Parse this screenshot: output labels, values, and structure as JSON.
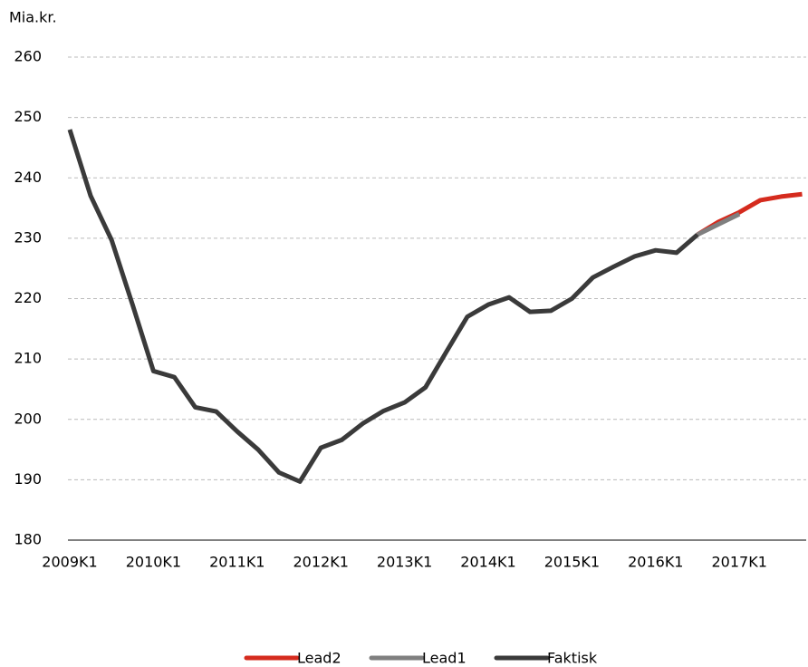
{
  "chart_data": {
    "type": "line",
    "y_label": "Mia.kr.",
    "categories": [
      "2009K1",
      null,
      null,
      null,
      "2010K1",
      null,
      null,
      null,
      "2011K1",
      null,
      null,
      null,
      "2012K1",
      null,
      null,
      null,
      "2013K1",
      null,
      null,
      null,
      "2014K1",
      null,
      null,
      null,
      "2015K1",
      null,
      null,
      null,
      "2016K1",
      null,
      null,
      null,
      "2017K1",
      null,
      null,
      null
    ],
    "series": [
      {
        "name": "Lead2",
        "color": "#d52b1e",
        "values": [
          null,
          null,
          null,
          null,
          null,
          null,
          null,
          null,
          null,
          null,
          null,
          null,
          null,
          null,
          null,
          null,
          null,
          null,
          null,
          null,
          null,
          null,
          null,
          null,
          null,
          null,
          null,
          null,
          null,
          null,
          230.6,
          232.7,
          234.3,
          236.3,
          236.9,
          237.3
        ]
      },
      {
        "name": "Lead1",
        "color": "#7f7f7f",
        "values": [
          null,
          null,
          null,
          null,
          null,
          null,
          null,
          null,
          null,
          null,
          null,
          null,
          null,
          null,
          null,
          null,
          null,
          null,
          null,
          null,
          null,
          null,
          null,
          null,
          null,
          null,
          null,
          null,
          null,
          null,
          230.6,
          232.3,
          234.0,
          null,
          null,
          null
        ]
      },
      {
        "name": "Faktisk",
        "color": "#3a3a3a",
        "values": [
          248,
          237,
          229.7,
          219,
          208,
          207,
          202,
          201.3,
          198,
          195,
          191.2,
          189.7,
          195.3,
          196.6,
          199.3,
          201.4,
          202.8,
          205.3,
          211.2,
          217,
          219,
          220.2,
          217.8,
          218,
          220,
          223.5,
          225.3,
          227,
          228,
          227.6,
          230.6,
          null,
          null,
          null,
          null,
          null
        ]
      }
    ],
    "ylim": [
      180,
      260
    ],
    "yticks": [
      180,
      190,
      200,
      210,
      220,
      230,
      240,
      250,
      260
    ],
    "grid": true
  }
}
